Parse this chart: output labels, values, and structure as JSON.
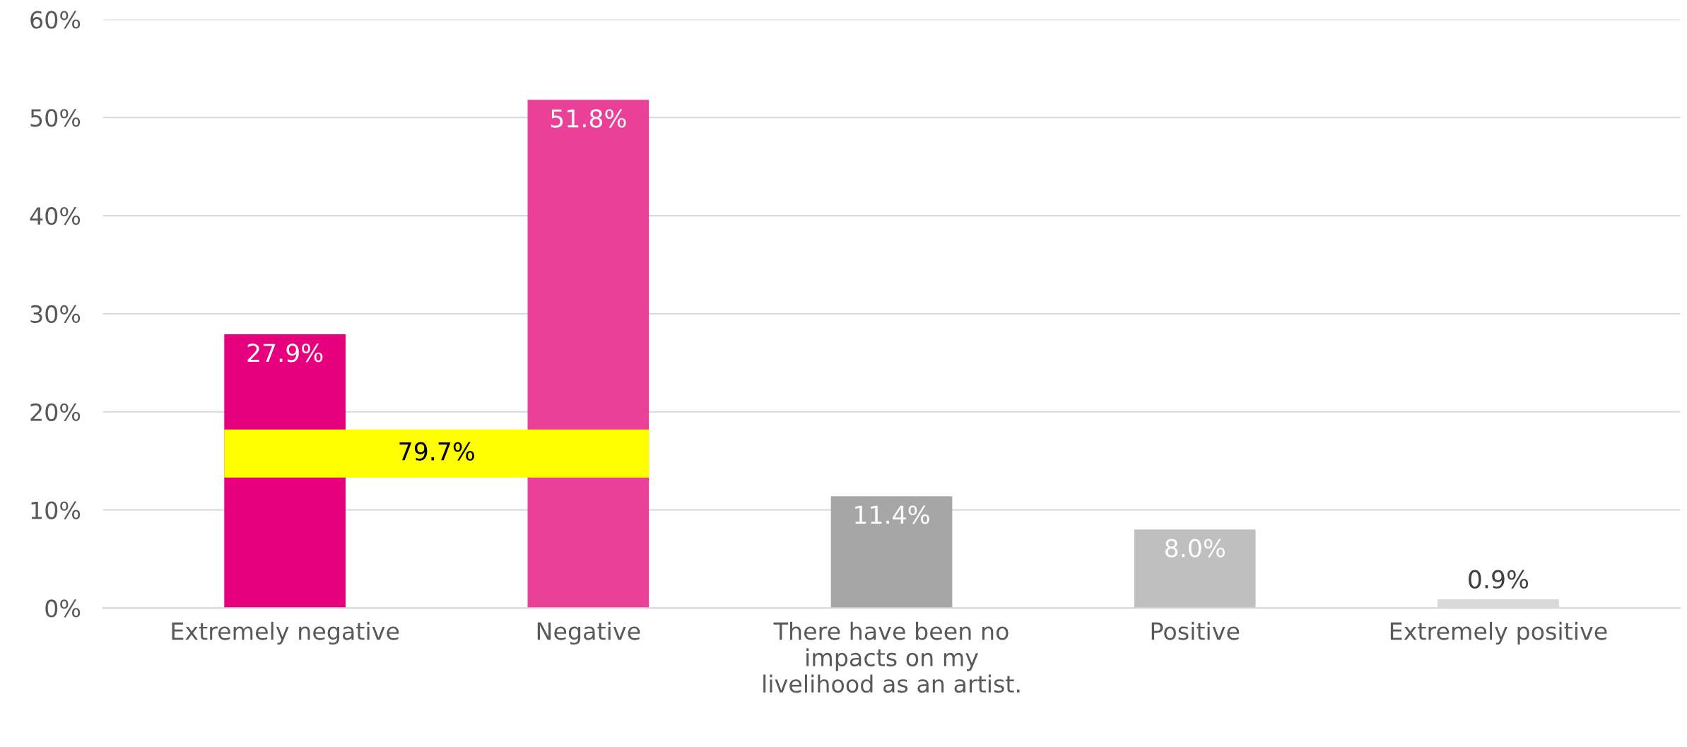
{
  "chart_data": {
    "type": "bar",
    "categories": [
      "Extremely negative",
      "Negative",
      "There have been no\nimpacts on my\nlivelihood as an artist.",
      "Positive",
      "Extremely positive"
    ],
    "values": [
      27.9,
      51.8,
      11.4,
      8.0,
      0.9
    ],
    "colors": [
      "#e6007e",
      "#ea4097",
      "#a6a6a6",
      "#bfbfbf",
      "#d9d9d9"
    ],
    "value_labels": [
      "27.9%",
      "51.8%",
      "11.4%",
      "8.0%",
      "0.9%"
    ],
    "ylim": [
      0,
      60
    ],
    "yticks": [
      {
        "value": 0,
        "label": "0%"
      },
      {
        "value": 10,
        "label": "10%"
      },
      {
        "value": 20,
        "label": "20%"
      },
      {
        "value": 30,
        "label": "30%"
      },
      {
        "value": 40,
        "label": "40%"
      },
      {
        "value": 50,
        "label": "50%"
      },
      {
        "value": 60,
        "label": "60%"
      }
    ],
    "grid": "y",
    "legend": false,
    "annotations": [
      "79.7%"
    ]
  }
}
